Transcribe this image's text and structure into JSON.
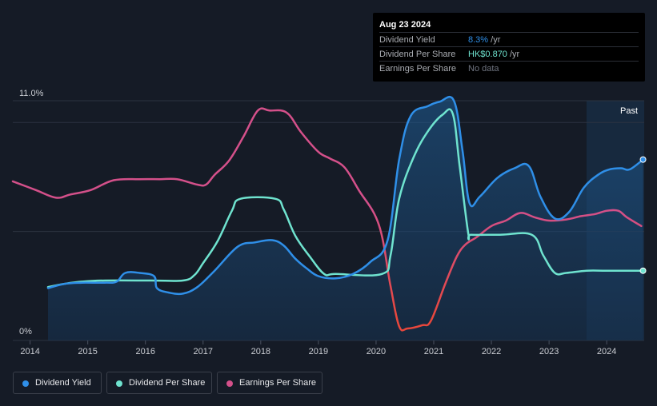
{
  "tooltip": {
    "date": "Aug 23 2024",
    "rows": [
      {
        "label": "Dividend Yield",
        "value": "8.3%",
        "unit": " /yr",
        "color": "#2f8fe8"
      },
      {
        "label": "Dividend Per Share",
        "value": "HK$0.870",
        "unit": " /yr",
        "color": "#6fe3cf"
      },
      {
        "label": "Earnings Per Share",
        "value": "No data",
        "unit": "",
        "color": "#6f7480"
      }
    ]
  },
  "past_label": "Past",
  "legend": [
    {
      "label": "Dividend Yield",
      "color": "#2f8fe8"
    },
    {
      "label": "Dividend Per Share",
      "color": "#6fe3cf"
    },
    {
      "label": "Earnings Per Share",
      "color": "#d4508a"
    }
  ],
  "chart_data": {
    "type": "line",
    "y_tick_labels": [
      "11.0%",
      "0%"
    ],
    "ylim": [
      0,
      11.0
    ],
    "xlim": [
      2013.7,
      2024.65
    ],
    "x_tick_labels": [
      "2014",
      "2015",
      "2016",
      "2017",
      "2018",
      "2019",
      "2020",
      "2021",
      "2022",
      "2023",
      "2024"
    ],
    "past_region_start": 2023.65,
    "series": [
      {
        "name": "Dividend Yield",
        "color": "#2f8fe8",
        "area": true,
        "endpoint_marker": true,
        "points": [
          [
            2014.31,
            2.4
          ],
          [
            2014.6,
            2.6
          ],
          [
            2014.9,
            2.65
          ],
          [
            2015.3,
            2.65
          ],
          [
            2015.5,
            2.7
          ],
          [
            2015.65,
            3.1
          ],
          [
            2015.9,
            3.1
          ],
          [
            2016.15,
            2.95
          ],
          [
            2016.2,
            2.4
          ],
          [
            2016.4,
            2.2
          ],
          [
            2016.65,
            2.15
          ],
          [
            2016.9,
            2.45
          ],
          [
            2017.2,
            3.2
          ],
          [
            2017.6,
            4.3
          ],
          [
            2017.9,
            4.5
          ],
          [
            2018.2,
            4.6
          ],
          [
            2018.4,
            4.35
          ],
          [
            2018.6,
            3.75
          ],
          [
            2018.8,
            3.3
          ],
          [
            2019.0,
            2.95
          ],
          [
            2019.3,
            2.85
          ],
          [
            2019.6,
            3.05
          ],
          [
            2019.9,
            3.6
          ],
          [
            2020.2,
            4.6
          ],
          [
            2020.4,
            8.3
          ],
          [
            2020.6,
            10.3
          ],
          [
            2020.9,
            10.75
          ],
          [
            2021.1,
            10.95
          ],
          [
            2021.35,
            11.0
          ],
          [
            2021.5,
            8.7
          ],
          [
            2021.62,
            6.3
          ],
          [
            2021.8,
            6.6
          ],
          [
            2022.1,
            7.45
          ],
          [
            2022.4,
            7.9
          ],
          [
            2022.65,
            8.0
          ],
          [
            2022.85,
            6.6
          ],
          [
            2023.1,
            5.6
          ],
          [
            2023.35,
            5.9
          ],
          [
            2023.6,
            7.0
          ],
          [
            2023.85,
            7.6
          ],
          [
            2024.05,
            7.85
          ],
          [
            2024.25,
            7.9
          ],
          [
            2024.4,
            7.85
          ],
          [
            2024.63,
            8.3
          ]
        ]
      },
      {
        "name": "Dividend Per Share",
        "color": "#6fe3cf",
        "points": [
          [
            2014.31,
            2.45
          ],
          [
            2014.6,
            2.6
          ],
          [
            2014.9,
            2.7
          ],
          [
            2015.3,
            2.75
          ],
          [
            2016.1,
            2.75
          ],
          [
            2016.65,
            2.75
          ],
          [
            2016.85,
            3.0
          ],
          [
            2017.0,
            3.55
          ],
          [
            2017.25,
            4.55
          ],
          [
            2017.5,
            5.95
          ],
          [
            2017.65,
            6.5
          ],
          [
            2018.25,
            6.5
          ],
          [
            2018.4,
            6.0
          ],
          [
            2018.6,
            4.8
          ],
          [
            2018.85,
            3.85
          ],
          [
            2019.1,
            3.05
          ],
          [
            2019.3,
            3.05
          ],
          [
            2020.1,
            3.05
          ],
          [
            2020.25,
            3.9
          ],
          [
            2020.4,
            6.5
          ],
          [
            2020.65,
            8.4
          ],
          [
            2020.9,
            9.6
          ],
          [
            2021.15,
            10.35
          ],
          [
            2021.33,
            10.4
          ],
          [
            2021.45,
            8.0
          ],
          [
            2021.6,
            4.9
          ],
          [
            2021.65,
            4.85
          ],
          [
            2022.15,
            4.85
          ],
          [
            2022.7,
            4.85
          ],
          [
            2022.9,
            3.9
          ],
          [
            2023.1,
            3.1
          ],
          [
            2023.3,
            3.1
          ],
          [
            2023.65,
            3.2
          ],
          [
            2024.0,
            3.2
          ],
          [
            2024.63,
            3.2
          ]
        ]
      },
      {
        "name": "Earnings Per Share",
        "color_start": "#d4508a",
        "color_end": "#e8473c",
        "points": [
          [
            2013.7,
            7.3
          ],
          [
            2014.1,
            6.9
          ],
          [
            2014.45,
            6.55
          ],
          [
            2014.7,
            6.7
          ],
          [
            2015.05,
            6.9
          ],
          [
            2015.45,
            7.35
          ],
          [
            2015.9,
            7.4
          ],
          [
            2016.25,
            7.4
          ],
          [
            2016.55,
            7.4
          ],
          [
            2016.9,
            7.15
          ],
          [
            2017.05,
            7.15
          ],
          [
            2017.2,
            7.6
          ],
          [
            2017.45,
            8.25
          ],
          [
            2017.7,
            9.35
          ],
          [
            2017.95,
            10.55
          ],
          [
            2018.15,
            10.55
          ],
          [
            2018.45,
            10.45
          ],
          [
            2018.7,
            9.55
          ],
          [
            2019.0,
            8.65
          ],
          [
            2019.2,
            8.35
          ],
          [
            2019.45,
            7.95
          ],
          [
            2019.7,
            6.9
          ],
          [
            2020.05,
            5.3
          ],
          [
            2020.25,
            2.5
          ],
          [
            2020.4,
            0.65
          ],
          [
            2020.55,
            0.55
          ],
          [
            2020.8,
            0.7
          ],
          [
            2020.95,
            0.9
          ],
          [
            2021.2,
            2.6
          ],
          [
            2021.4,
            3.85
          ],
          [
            2021.55,
            4.4
          ],
          [
            2021.75,
            4.75
          ],
          [
            2022.0,
            5.25
          ],
          [
            2022.25,
            5.5
          ],
          [
            2022.5,
            5.85
          ],
          [
            2022.75,
            5.65
          ],
          [
            2023.0,
            5.5
          ],
          [
            2023.3,
            5.55
          ],
          [
            2023.55,
            5.7
          ],
          [
            2023.8,
            5.8
          ],
          [
            2024.0,
            5.95
          ],
          [
            2024.2,
            5.95
          ],
          [
            2024.35,
            5.65
          ],
          [
            2024.6,
            5.25
          ]
        ]
      }
    ]
  }
}
